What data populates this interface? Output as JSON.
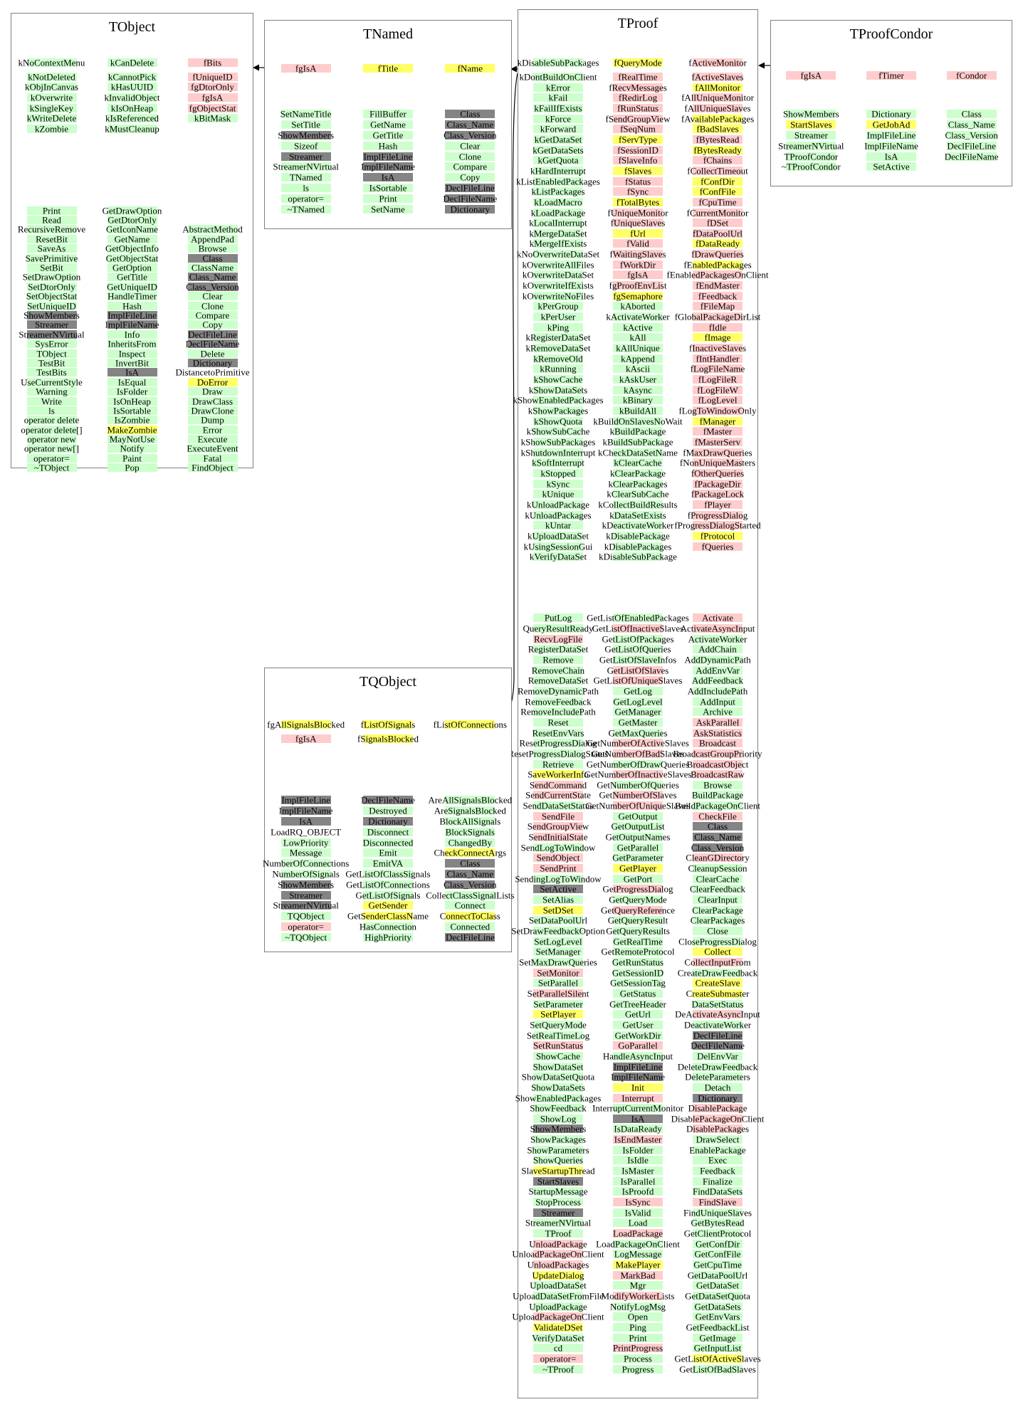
{
  "palette": {
    "g": "#ccffcc",
    "p": "#ffcccc",
    "y": "#ffff66",
    "x": "#848484",
    "w": "transparent"
  },
  "arrows": [
    {
      "from": "TNamed",
      "to": "TObject"
    },
    {
      "from": "TProof",
      "to": "TNamed"
    },
    {
      "from": "TProof",
      "to": "TQObject"
    },
    {
      "from": "TProofCondor",
      "to": "TProof"
    }
  ],
  "boxes": [
    {
      "title": "TObject",
      "fields": {
        "cols": [
          [
            "kNoContextMenu|g",
            "kNotDeleted|g",
            "kObjInCanvas|g",
            "kOverwrite|g",
            "kSingleKey|g",
            "kWriteDelete|g",
            "kZombie|g"
          ],
          [
            "kCanDelete|g",
            "kCannotPick|g",
            "kHasUUID|g",
            "kInvalidObject|g",
            "kIsOnHeap|g",
            "kIsReferenced|g",
            "kMustCleanup|g"
          ],
          [
            "fBits|p",
            "fUniqueID|p",
            "fgDtorOnly|p",
            "fgIsA|p",
            "fgObjectStat|p",
            "kBitMask|g"
          ]
        ]
      },
      "methods": {
        "cols": [
          [
            "Print|g",
            "Read|g",
            "RecursiveRemove|g",
            "ResetBit|g",
            "SaveAs|g",
            "SavePrimitive|g",
            "SetBit|g",
            "SetDrawOption|g",
            "SetDtorOnly|g",
            "SetObjectStat|g",
            "SetUniqueID|g",
            "ShowMembers|x",
            "Streamer|x",
            "StreamerNVirtual|x",
            "SysError|g",
            "TObject|g",
            "TestBit|g",
            "TestBits|g",
            "UseCurrentStyle|g",
            "Warning|g",
            "Write|g",
            "ls|g",
            "operator delete|g",
            "operator delete[]|g",
            "operator new|g",
            "operator new[]|g",
            "operator=|g",
            "~TObject|g"
          ],
          [
            "GetDrawOption|g",
            "GetDtorOnly|g",
            "GetIconName|g",
            "GetName|g",
            "GetObjectInfo|g",
            "GetObjectStat|g",
            "GetOption|g",
            "GetTitle|g",
            "GetUniqueID|g",
            "HandleTimer|g",
            "Hash|g",
            "ImplFileLine|x",
            "ImplFileName|x",
            "Info|g",
            "InheritsFrom|g",
            "Inspect|g",
            "InvertBit|g",
            "IsA|x",
            "IsEqual|g",
            "IsFolder|g",
            "IsOnHeap|g",
            "IsSortable|g",
            "IsZombie|g",
            "MakeZombie|y",
            "MayNotUse|g",
            "Notify|g",
            "Paint|g",
            "Pop|g"
          ],
          [
            null,
            null,
            "AbstractMethod|g",
            "AppendPad|g",
            "Browse|g",
            "Class|x",
            "ClassName|g",
            "Class_Name|x",
            "Class_Version|x",
            "Clear|g",
            "Clone|g",
            "Compare|g",
            "Copy|g",
            "DeclFileLine|x",
            "DeclFileName|x",
            "Delete|g",
            "Dictionary|x",
            "DistancetoPrimitive|w",
            "DoError|y",
            "Draw|g",
            "DrawClass|g",
            "DrawClone|g",
            "Dump|g",
            "Error|g",
            "Execute|g",
            "ExecuteEvent|g",
            "Fatal|g",
            "FindObject|g"
          ]
        ]
      }
    },
    {
      "title": "TNamed",
      "fields": {
        "cols": [
          [
            "fgIsA|p"
          ],
          [
            "fTitle|y"
          ],
          [
            "fName|y"
          ]
        ]
      },
      "methods": {
        "cols": [
          [
            "SetNameTitle|g",
            "SetTitle|g",
            "ShowMembers|x",
            "Sizeof|g",
            "Streamer|x",
            "StreamerNVirtual|g",
            "TNamed|g",
            "ls|g",
            "operator=|g",
            "~TNamed|g"
          ],
          [
            "FillBuffer|g",
            "GetName|g",
            "GetTitle|g",
            "Hash|g",
            "ImplFileLine|x",
            "ImplFileName|x",
            "IsA|x",
            "IsSortable|g",
            "Print|g",
            "SetName|g"
          ],
          [
            "Class|x",
            "Class_Name|x",
            "Class_Version|x",
            "Clear|g",
            "Clone|g",
            "Compare|g",
            "Copy|g",
            "DeclFileLine|x",
            "DeclFileName|x",
            "Dictionary|x"
          ]
        ]
      }
    },
    {
      "title": "TProof",
      "fields": {
        "cols": [
          [
            "kDisableSubPackages|g",
            "kDontBuildOnClient|g",
            "kError|g",
            "kFail|g",
            "kFailIfExists|g",
            "kForce|g",
            "kForward|g",
            "kGetDataSet|g",
            "kGetDataSets|g",
            "kGetQuota|g",
            "kHardInterrupt|g",
            "kListEnabledPackages|g",
            "kListPackages|g",
            "kLoadMacro|g",
            "kLoadPackage|g",
            "kLocalInterrupt|g",
            "kMergeDataSet|g",
            "kMergeIfExists|g",
            "kNoOverwriteDataSet|g",
            "kOverwriteAllFiles|g",
            "kOverwriteDataSet|g",
            "kOverwriteIfExists|g",
            "kOverwriteNoFiles|g",
            "kPerGroup|g",
            "kPerUser|g",
            "kPing|g",
            "kRegisterDataSet|g",
            "kRemoveDataSet|g",
            "kRemoveOld|g",
            "kRunning|g",
            "kShowCache|g",
            "kShowDataSets|g",
            "kShowEnabledPackages|g",
            "kShowPackages|g",
            "kShowQuota|g",
            "kShowSubCache|g",
            "kShowSubPackages|g",
            "kShutdownInterrupt|g",
            "kSoftInterrupt|g",
            "kStopped|g",
            "kSync|g",
            "kUnique|g",
            "kUnloadPackage|g",
            "kUnloadPackages|g",
            "kUntar|g",
            "kUploadDataSet|g",
            "kUsingSessionGui|g",
            "kVerifyDataSet|g"
          ],
          [
            "fQueryMode|y",
            "fRealTime|p",
            "fRecvMessages|p",
            "fRedirLog|p",
            "fRunStatus|p",
            "fSendGroupView|p",
            "fSeqNum|p",
            "fServType|y",
            "fSessionID|p",
            "fSlaveInfo|p",
            "fSlaves|y",
            "fStatus|p",
            "fSync|p",
            "fTotalBytes|y",
            "fUniqueMonitor|p",
            "fUniqueSlaves|p",
            "fUrl|y",
            "fValid|p",
            "fWaitingSlaves|p",
            "fWorkDir|p",
            "fgIsA|p",
            "fgProofEnvList|p",
            "fgSemaphore|y",
            "kAborted|g",
            "kActivateWorker|g",
            "kActive|g",
            "kAll|g",
            "kAllUnique|g",
            "kAppend|g",
            "kAscii|g",
            "kAskUser|g",
            "kAsync|g",
            "kBinary|g",
            "kBuildAll|g",
            "kBuildOnSlavesNoWait|g",
            "kBuildPackage|g",
            "kBuildSubPackage|g",
            "kCheckDataSetName|g",
            "kClearCache|g",
            "kClearPackage|g",
            "kClearPackages|g",
            "kClearSubCache|g",
            "kCollectBuildResults|g",
            "kDataSetExists|g",
            "kDeactivateWorker|g",
            "kDisablePackage|g",
            "kDisablePackages|g",
            "kDisableSubPackage|g"
          ],
          [
            "fActiveMonitor|p",
            "fActiveSlaves|p",
            "fAllMonitor|y",
            "fAllUniqueMonitor|p",
            "fAllUniqueSlaves|p",
            "fAvailablePackages|y",
            "fBadSlaves|y",
            "fBytesRead|p",
            "fBytesReady|y",
            "fChains|p",
            "fCollectTimeout|p",
            "fConfDir|y",
            "fConfFile|y",
            "fCpuTime|p",
            "fCurrentMonitor|p",
            "fDSet|p",
            "fDataPoolUrl|p",
            "fDataReady|y",
            "fDrawQueries|p",
            "fEnabledPackages|y",
            "fEnabledPackagesOnClient|p",
            "fEndMaster|p",
            "fFeedback|p",
            "fFileMap|p",
            "fGlobalPackageDirList|p",
            "fIdle|p",
            "fImage|y",
            "fInactiveSlaves|p",
            "fIntHandler|p",
            "fLogFileName|p",
            "fLogFileR|p",
            "fLogFileW|p",
            "fLogLevel|p",
            "fLogToWindowOnly|p",
            "fManager|y",
            "fMaster|p",
            "fMasterServ|p",
            "fMaxDrawQueries|p",
            "fNonUniqueMasters|p",
            "fOtherQueries|p",
            "fPackageDir|p",
            "fPackageLock|p",
            "fPlayer|p",
            "fProgressDialog|p",
            "fProgressDialogStarted|p",
            "fProtocol|y",
            "fQueries|p"
          ]
        ]
      },
      "methods": {
        "cols": [
          [
            "PutLog|g",
            "QueryResultReady|g",
            "RecvLogFile|p",
            "RegisterDataSet|g",
            "Remove|g",
            "RemoveChain|g",
            "RemoveDataSet|g",
            "RemoveDynamicPath|g",
            "RemoveFeedback|g",
            "RemoveIncludePath|g",
            "Reset|g",
            "ResetEnvVars|g",
            "ResetProgressDialog|g",
            "ResetProgressDialogStatus|g",
            "Retrieve|g",
            "SaveWorkerInfo|y",
            "SendCommand|p",
            "SendCurrentState|p",
            "SendDataSetStatus|g",
            "SendFile|p",
            "SendGroupView|p",
            "SendInitialState|p",
            "SendLogToWindow|g",
            "SendObject|p",
            "SendPrint|p",
            "SendingLogToWindow|g",
            "SetActive|x",
            "SetAlias|g",
            "SetDSet|y",
            "SetDataPoolUrl|g",
            "SetDrawFeedbackOption|g",
            "SetLogLevel|g",
            "SetManager|g",
            "SetMaxDrawQueries|g",
            "SetMonitor|p",
            "SetParallel|g",
            "SetParallelSilent|p",
            "SetParameter|g",
            "SetPlayer|y",
            "SetQueryMode|g",
            "SetRealTimeLog|g",
            "SetRunStatus|p",
            "ShowCache|g",
            "ShowDataSet|g",
            "ShowDataSetQuota|g",
            "ShowDataSets|g",
            "ShowEnabledPackages|g",
            "ShowFeedback|g",
            "ShowLog|g",
            "ShowMembers|x",
            "ShowPackages|g",
            "ShowParameters|g",
            "ShowQueries|g",
            "SlaveStartupThread|y",
            "StartSlaves|x",
            "StartupMessage|g",
            "StopProcess|g",
            "Streamer|x",
            "StreamerNVirtual|g",
            "TProof|g",
            "UnloadPackage|p",
            "UnloadPackageOnClient|p",
            "UnloadPackages|p",
            "UpdateDialog|y",
            "UploadDataSet|g",
            "UploadDataSetFromFile|g",
            "UploadPackage|g",
            "UploadPackageOnClient|p",
            "ValidateDSet|y",
            "VerifyDataSet|g",
            "cd|g",
            "operator=|p",
            "~TProof|g"
          ],
          [
            "GetListOfEnabledPackages|g",
            "GetListOfInactiveSlaves|p",
            "GetListOfPackages|g",
            "GetListOfQueries|g",
            "GetListOfSlaveInfos|g",
            "GetListOfSlaves|p",
            "GetListOfUniqueSlaves|p",
            "GetLog|g",
            "GetLogLevel|g",
            "GetManager|g",
            "GetMaster|g",
            "GetMaxQueries|g",
            "GetNumberOfActiveSlaves|p",
            "GetNumberOfBadSlaves|p",
            "GetNumberOfDrawQueries|g",
            "GetNumberOfInactiveSlaves|p",
            "GetNumberOfQueries|g",
            "GetNumberOfSlaves|p",
            "GetNumberOfUniqueSlaves|p",
            "GetOutput|g",
            "GetOutputList|g",
            "GetOutputNames|g",
            "GetParallel|g",
            "GetParameter|g",
            "GetPlayer|y",
            "GetPort|g",
            "GetProgressDialog|p",
            "GetQueryMode|g",
            "GetQueryReference|p",
            "GetQueryResult|g",
            "GetQueryResults|g",
            "GetRealTime|g",
            "GetRemoteProtocol|g",
            "GetRunStatus|g",
            "GetSessionID|g",
            "GetSessionTag|g",
            "GetStatus|g",
            "GetTreeHeader|g",
            "GetUrl|g",
            "GetUser|g",
            "GetWorkDir|g",
            "GoParallel|p",
            "HandleAsyncInput|g",
            "ImplFileLine|x",
            "ImplFileName|x",
            "Init|y",
            "Interrupt|p",
            "InterruptCurrentMonitor|g",
            "IsA|x",
            "IsDataReady|g",
            "IsEndMaster|p",
            "IsFolder|g",
            "IsIdle|g",
            "IsMaster|g",
            "IsParallel|g",
            "IsProofd|g",
            "IsSync|p",
            "IsValid|g",
            "Load|g",
            "LoadPackage|p",
            "LoadPackageOnClient|g",
            "LogMessage|g",
            "MakePlayer|y",
            "MarkBad|p",
            "Mgr|g",
            "ModifyWorkerLists|p",
            "NotifyLogMsg|g",
            "Open|g",
            "Ping|g",
            "Print|g",
            "PrintProgress|p",
            "Process|g",
            "Progress|g"
          ],
          [
            "Activate|p",
            "ActivateAsyncInput|p",
            "ActivateWorker|g",
            "AddChain|g",
            "AddDynamicPath|g",
            "AddEnvVar|g",
            "AddFeedback|g",
            "AddIncludePath|g",
            "AddInput|g",
            "Archive|g",
            "AskParallel|p",
            "AskStatistics|p",
            "Broadcast|p",
            "BroadcastGroupPriority|p",
            "BroadcastObject|p",
            "BroadcastRaw|p",
            "Browse|g",
            "BuildPackage|g",
            "BuildPackageOnClient|g",
            "CheckFile|p",
            "Class|x",
            "Class_Name|x",
            "Class_Version|x",
            "CleanGDirectory|p",
            "CleanupSession|g",
            "ClearCache|g",
            "ClearFeedback|g",
            "ClearInput|g",
            "ClearPackage|g",
            "ClearPackages|g",
            "Close|g",
            "CloseProgressDialog|g",
            "Collect|y",
            "CollectInputFrom|p",
            "CreateDrawFeedback|g",
            "CreateSlave|y",
            "CreateSubmaster|y",
            "DataSetStatus|g",
            "DeActivateAsyncInput|p",
            "DeactivateWorker|g",
            "DeclFileLine|x",
            "DeclFileName|x",
            "DelEnvVar|g",
            "DeleteDrawFeedback|g",
            "DeleteParameters|g",
            "Detach|g",
            "Dictionary|x",
            "DisablePackage|p",
            "DisablePackageOnClient|p",
            "DisablePackages|p",
            "DrawSelect|g",
            "EnablePackage|g",
            "Exec|g",
            "Feedback|g",
            "Finalize|g",
            "FindDataSets|g",
            "FindSlave|p",
            "FindUniqueSlaves|g",
            "GetBytesRead|g",
            "GetClientProtocol|g",
            "GetConfDir|g",
            "GetConfFile|g",
            "GetCpuTime|g",
            "GetDataPoolUrl|g",
            "GetDataSet|g",
            "GetDataSetQuota|g",
            "GetDataSets|g",
            "GetEnvVars|g",
            "GetFeedbackList|g",
            "GetImage|g",
            "GetInputList|g",
            "GetListOfActiveSlaves|y",
            "GetListOfBadSlaves|g"
          ]
        ]
      }
    },
    {
      "title": "TProofCondor",
      "fields": {
        "cols": [
          [
            "fgIsA|p"
          ],
          [
            "fTimer|p"
          ],
          [
            "fCondor|p"
          ]
        ]
      },
      "methods": {
        "cols": [
          [
            "ShowMembers|g",
            "StartSlaves|y",
            "Streamer|g",
            "StreamerNVirtual|g",
            "TProofCondor|g",
            "~TProofCondor|g"
          ],
          [
            "Dictionary|g",
            "GetJobAd|y",
            "ImplFileLine|g",
            "ImplFileName|g",
            "IsA|g",
            "SetActive|g"
          ],
          [
            "Class|g",
            "Class_Name|g",
            "Class_Version|g",
            "DeclFileLine|g",
            "DeclFileName|g"
          ]
        ]
      }
    },
    {
      "title": "TQObject",
      "fields": {
        "cols": [
          [
            "fgAllSignalsBlocked|y",
            "fgIsA|p"
          ],
          [
            "fListOfSignals|y",
            "fSignalsBlocked|y"
          ],
          [
            "fListOfConnections|y"
          ]
        ]
      },
      "methods": {
        "cols": [
          [
            "ImplFileLine|x",
            "ImplFileName|x",
            "IsA|x",
            "LoadRQ_OBJECT|w",
            "LowPriority|g",
            "Message|g",
            "NumberOfConnections|g",
            "NumberOfSignals|g",
            "ShowMembers|x",
            "Streamer|x",
            "StreamerNVirtual|x",
            "TQObject|g",
            "operator=|p",
            "~TQObject|g"
          ],
          [
            "DeclFileName|x",
            "Destroyed|g",
            "Dictionary|x",
            "Disconnect|g",
            "Disconnected|g",
            "Emit|g",
            "EmitVA|g",
            "GetListOfClassSignals|g",
            "GetListOfConnections|g",
            "GetListOfSignals|g",
            "GetSender|y",
            "GetSenderClassName|y",
            "HasConnection|g",
            "HighPriority|g"
          ],
          [
            "AreAllSignalsBlocked|g",
            "AreSignalsBlocked|g",
            "BlockAllSignals|g",
            "BlockSignals|g",
            "ChangedBy|g",
            "CheckConnectArgs|y",
            "Class|x",
            "Class_Name|x",
            "Class_Version|x",
            "CollectClassSignalLists|g",
            "Connect|g",
            "ConnectToClass|y",
            "Connected|g",
            "DeclFileLine|x"
          ]
        ]
      }
    }
  ]
}
